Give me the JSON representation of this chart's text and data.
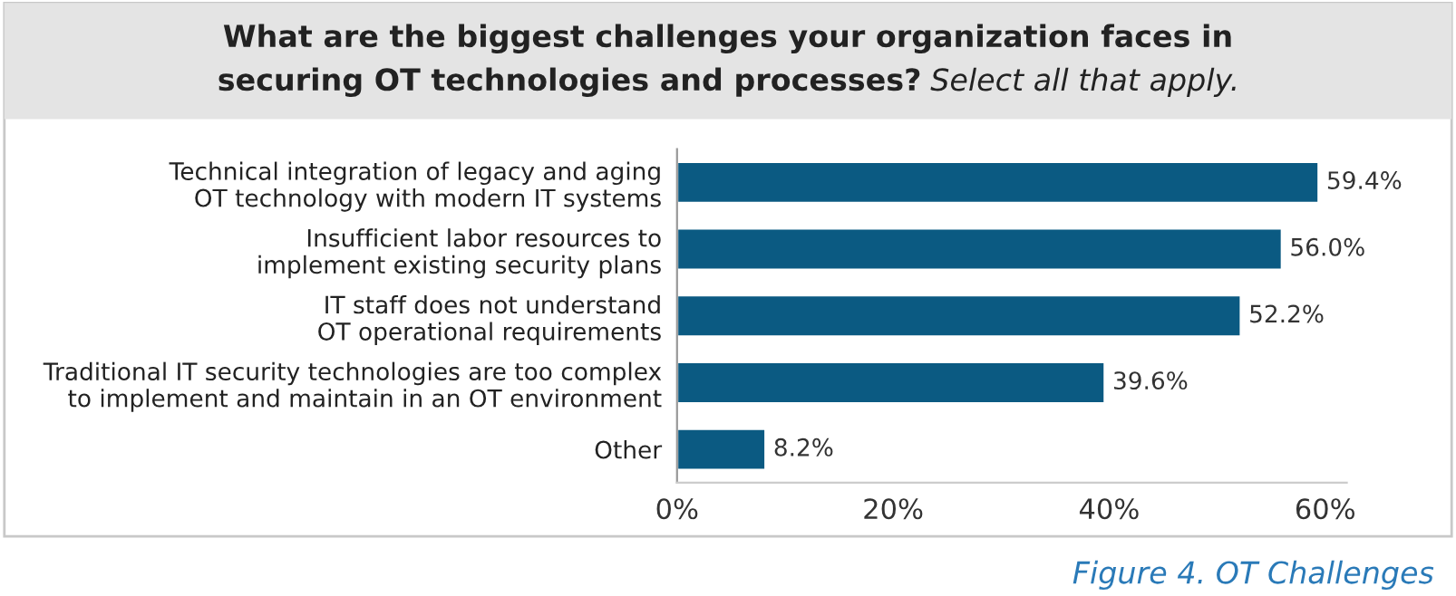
{
  "chart_data": {
    "type": "bar",
    "orientation": "horizontal",
    "title": "What are the biggest challenges your organization faces in securing OT technologies and processes?",
    "subtitle": "Select all that apply.",
    "categories": [
      "Technical integration of legacy and aging OT technology with modern IT systems",
      "Insufficient labor resources to implement existing security plans",
      "IT staff does not understand OT operational requirements",
      "Traditional IT security technologies are too complex to implement and maintain in an OT environment",
      "Other"
    ],
    "values": [
      59.4,
      56.0,
      52.2,
      39.6,
      8.2
    ],
    "value_labels": [
      "59.4%",
      "56.0%",
      "52.2%",
      "39.6%",
      "8.2%"
    ],
    "color": "#0b5a82",
    "xlim": [
      0,
      62
    ],
    "xticks": [
      {
        "value": 0,
        "label": "0%"
      },
      {
        "value": 20,
        "label": "20%"
      },
      {
        "value": 40,
        "label": "40%"
      },
      {
        "value": 60,
        "label": "60%"
      }
    ],
    "grid": false,
    "annotations": [
      "Figure 4. OT Challenges"
    ]
  }
}
